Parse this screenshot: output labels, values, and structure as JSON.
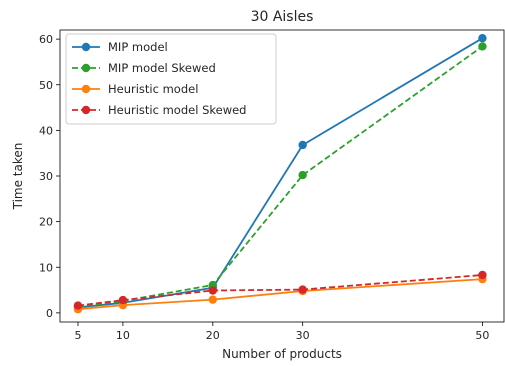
{
  "chart_data": {
    "type": "line",
    "title": "30 Aisles",
    "xlabel": "Number of products",
    "ylabel": "Time taken",
    "x": [
      5,
      10,
      20,
      30,
      50
    ],
    "x_ticks": [
      "5",
      "10",
      "20",
      "30",
      "50"
    ],
    "y_ticks": [
      0,
      10,
      20,
      30,
      40,
      50,
      60
    ],
    "ylim": [
      -2,
      62
    ],
    "grid": false,
    "legend_position": "top-left",
    "series": [
      {
        "name": "MIP model",
        "values": [
          1.2,
          2.2,
          5.5,
          36.8,
          60.2
        ],
        "color": "#1f77b4",
        "dashed": false
      },
      {
        "name": "MIP model Skewed",
        "values": [
          1.3,
          2.6,
          6.1,
          30.2,
          58.4
        ],
        "color": "#2ca02c",
        "dashed": true
      },
      {
        "name": "Heuristic model",
        "values": [
          0.8,
          1.7,
          2.9,
          4.8,
          7.4
        ],
        "color": "#ff7f0e",
        "dashed": false
      },
      {
        "name": "Heuristic model Skewed",
        "values": [
          1.6,
          2.8,
          4.9,
          5.1,
          8.3
        ],
        "color": "#d62728",
        "dashed": true
      }
    ]
  }
}
